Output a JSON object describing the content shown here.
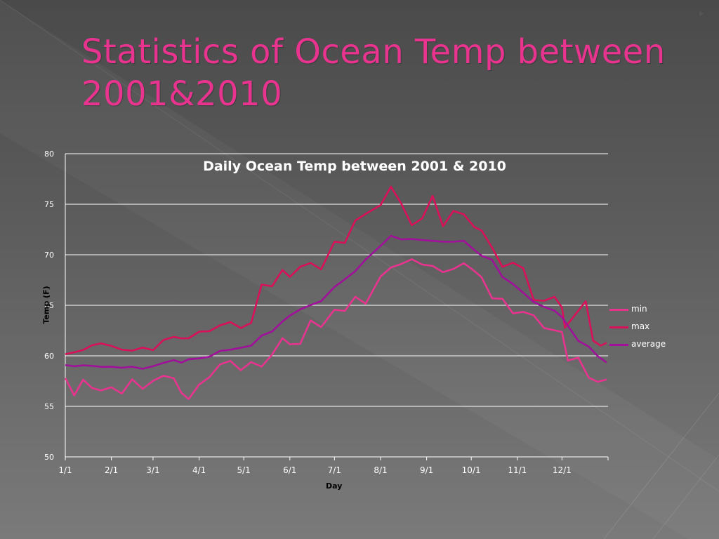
{
  "slide": {
    "title": "Statistics of Ocean Temp between 2001&2010",
    "bullet_icon": "arrow-bullet"
  },
  "colors": {
    "background": "#5e5e5e",
    "title": "#e8338f",
    "min": "#e8338f",
    "max": "#d9105a",
    "average": "#a0109a",
    "grid": "#ffffff"
  },
  "chart_data": {
    "type": "line",
    "title": "Daily Ocean Temp between 2001 & 2010",
    "xlabel": "Day",
    "ylabel": "Temp (F)",
    "ylim": [
      50,
      80
    ],
    "yticks": [
      50,
      55,
      60,
      65,
      70,
      75,
      80
    ],
    "xticks": [
      "1/1",
      "2/1",
      "3/1",
      "4/1",
      "5/1",
      "6/1",
      "7/1",
      "8/1",
      "9/1",
      "10/1",
      "11/1",
      "12/1"
    ],
    "xlim_days": [
      0,
      365
    ],
    "grid": true,
    "legend_position": "right",
    "series": [
      {
        "name": "min",
        "color": "#e8338f",
        "x": [
          0,
          6,
          12,
          18,
          24,
          31,
          38,
          45,
          52,
          59,
          66,
          73,
          78,
          83,
          90,
          97,
          104,
          111,
          118,
          125,
          132,
          139,
          146,
          151,
          158,
          165,
          172,
          181,
          188,
          195,
          202,
          212,
          219,
          226,
          233,
          240,
          247,
          254,
          261,
          268,
          275,
          280,
          287,
          294,
          301,
          308,
          315,
          322,
          329,
          334,
          338,
          345,
          352,
          358,
          364
        ],
        "y": [
          57.5,
          56.4,
          57.6,
          56.9,
          56.6,
          56.8,
          56.5,
          57.8,
          56.7,
          57.2,
          57.8,
          58.0,
          56.0,
          55.5,
          57.2,
          57.6,
          59.2,
          59.4,
          58.7,
          59.2,
          58.9,
          60.0,
          61.8,
          61.4,
          61.3,
          63.5,
          63.2,
          64.8,
          64.5,
          65.5,
          65.0,
          68.0,
          68.8,
          69.3,
          69.5,
          68.7,
          68.6,
          68.3,
          68.4,
          69.1,
          68.1,
          67.8,
          65.9,
          65.5,
          64.0,
          64.5,
          64.0,
          63.0,
          62.8,
          62.5,
          59.8,
          59.6,
          57.8,
          57.5,
          57.4
        ]
      },
      {
        "name": "max",
        "color": "#d9105a",
        "x": [
          0,
          6,
          12,
          18,
          24,
          31,
          38,
          45,
          52,
          59,
          66,
          73,
          78,
          83,
          90,
          97,
          104,
          111,
          118,
          125,
          132,
          139,
          146,
          151,
          158,
          165,
          172,
          181,
          188,
          195,
          202,
          212,
          219,
          226,
          233,
          240,
          247,
          254,
          261,
          268,
          275,
          280,
          287,
          294,
          301,
          308,
          315,
          322,
          329,
          334,
          336,
          350,
          355,
          360,
          364
        ],
        "y": [
          60.0,
          60.3,
          60.6,
          61.2,
          61.0,
          60.8,
          60.6,
          60.5,
          60.8,
          60.9,
          61.5,
          61.8,
          61.8,
          61.5,
          62.5,
          62.5,
          63.2,
          63.0,
          62.6,
          63.0,
          66.8,
          67.2,
          68.4,
          67.5,
          69.0,
          69.0,
          68.8,
          71.0,
          71.4,
          73.5,
          74.0,
          75.0,
          76.8,
          75.0,
          73.2,
          73.5,
          75.5,
          73.0,
          74.5,
          73.8,
          72.5,
          72.3,
          71.0,
          68.8,
          69.0,
          68.5,
          65.8,
          65.5,
          65.5,
          64.5,
          62.8,
          65.5,
          61.5,
          61.3,
          61.0
        ]
      },
      {
        "name": "average",
        "color": "#a0109a",
        "x": [
          0,
          6,
          12,
          18,
          24,
          31,
          38,
          45,
          52,
          59,
          66,
          73,
          78,
          83,
          90,
          97,
          104,
          111,
          118,
          125,
          132,
          139,
          146,
          151,
          158,
          165,
          172,
          181,
          188,
          195,
          202,
          212,
          219,
          226,
          233,
          240,
          247,
          254,
          261,
          268,
          275,
          280,
          287,
          294,
          301,
          308,
          315,
          322,
          329,
          334,
          338,
          345,
          352,
          358,
          364
        ],
        "y": [
          59.2,
          59.0,
          59.1,
          58.9,
          58.9,
          58.9,
          58.8,
          58.9,
          58.7,
          59.0,
          59.2,
          59.5,
          59.4,
          59.6,
          59.7,
          59.8,
          60.5,
          60.5,
          60.8,
          61.0,
          62.0,
          62.5,
          63.5,
          64.0,
          64.5,
          65.0,
          65.5,
          66.8,
          67.5,
          68.5,
          69.5,
          71.0,
          71.9,
          71.6,
          71.5,
          71.4,
          71.3,
          71.3,
          71.3,
          71.4,
          70.5,
          70.0,
          69.5,
          67.8,
          67.0,
          66.3,
          65.2,
          64.8,
          64.4,
          63.8,
          63.0,
          61.5,
          61.0,
          60.0,
          59.3
        ]
      }
    ]
  }
}
